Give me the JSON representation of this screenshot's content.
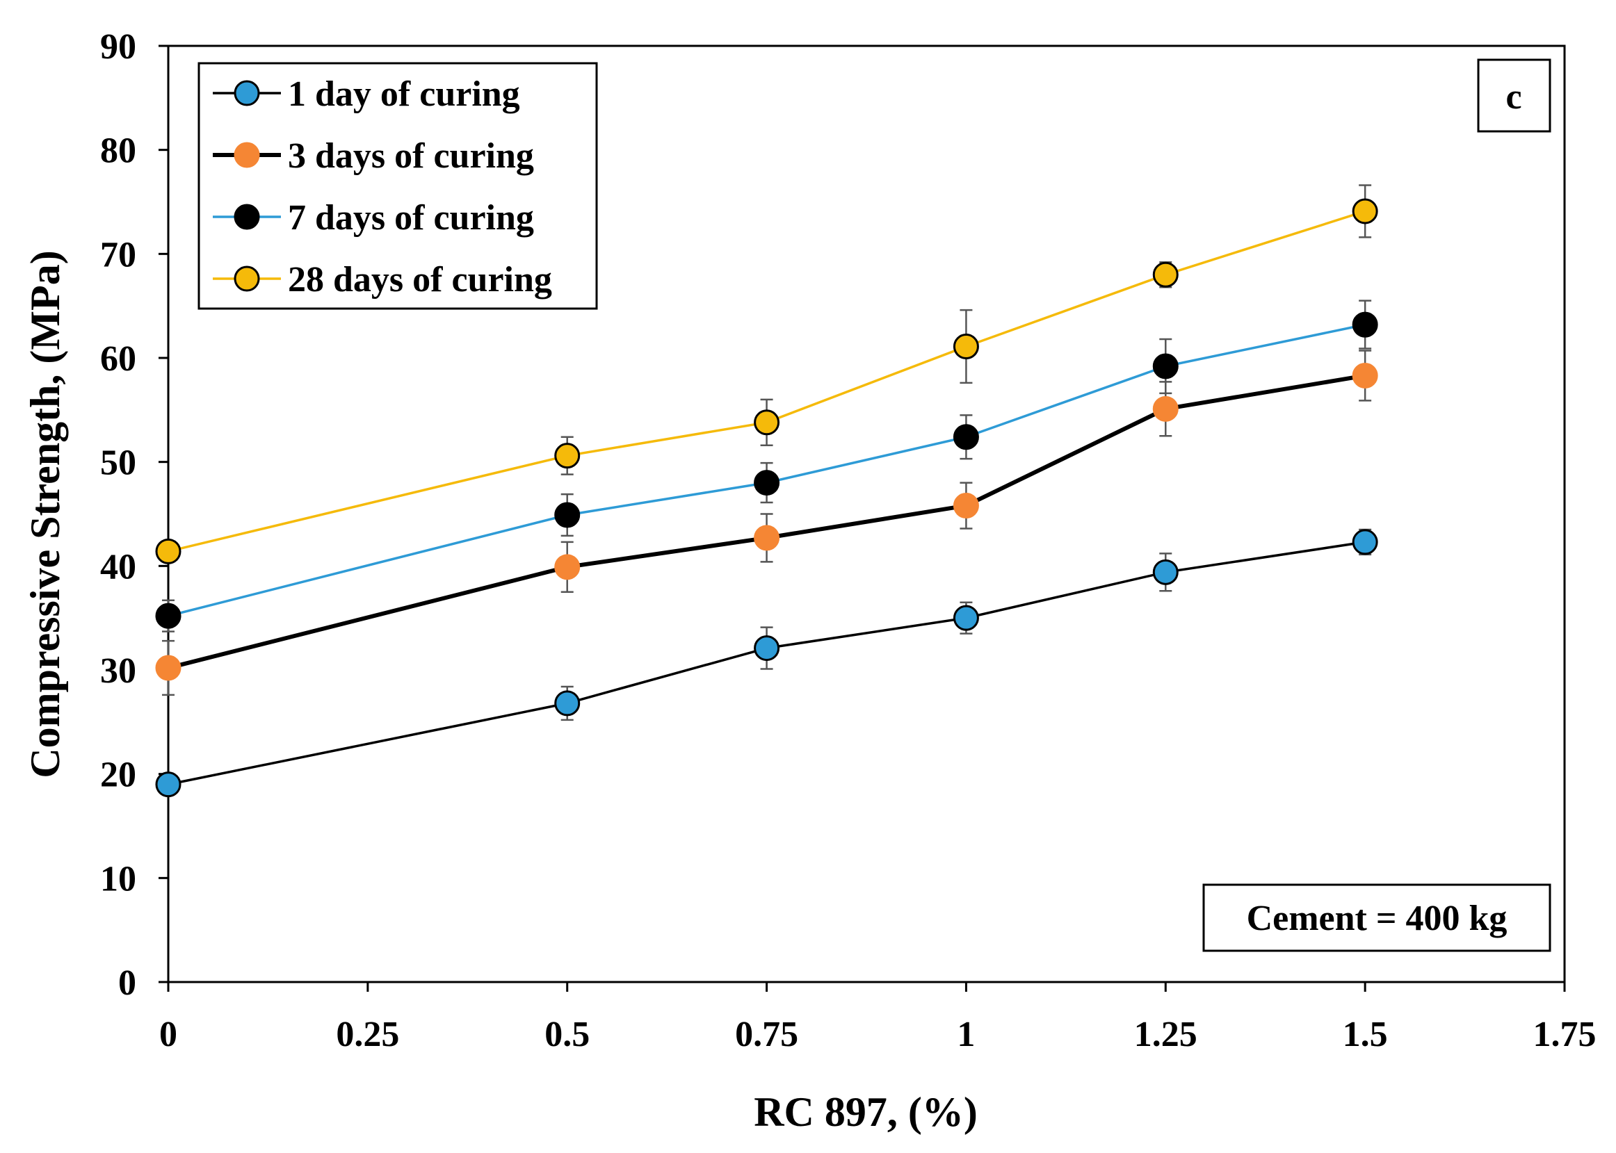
{
  "chart_data": {
    "type": "line",
    "title": "",
    "xlabel": "RC 897, (%)",
    "ylabel": "Compressive  Strength, (MPa)",
    "xlim": [
      0,
      1.75
    ],
    "ylim": [
      0,
      90
    ],
    "x_ticks": [
      "0",
      "0.25",
      "0.5",
      "0.75",
      "1",
      "1.25",
      "1.5",
      "1.75"
    ],
    "x_tick_values": [
      0,
      0.25,
      0.5,
      0.75,
      1,
      1.25,
      1.5,
      1.75
    ],
    "y_ticks": [
      "0",
      "10",
      "20",
      "30",
      "40",
      "50",
      "60",
      "70",
      "80",
      "90"
    ],
    "y_tick_values": [
      0,
      10,
      20,
      30,
      40,
      50,
      60,
      70,
      80,
      90
    ],
    "grid": false,
    "legend_position": "top-left",
    "panel_label": "c",
    "annotation": "Cement = 400 kg",
    "x": [
      0,
      0.5,
      0.75,
      1,
      1.25,
      1.5
    ],
    "series": [
      {
        "name": "1 day of curing",
        "values": [
          19,
          26.8,
          32.1,
          35,
          39.4,
          42.3
        ],
        "errors": [
          0.8,
          1.6,
          2.0,
          1.5,
          1.8,
          1.2
        ],
        "line_color": "#000000",
        "marker_color": "#2E9BD6"
      },
      {
        "name": "3 days of curing",
        "values": [
          30.2,
          39.9,
          42.7,
          45.8,
          55.1,
          58.3
        ],
        "errors": [
          2.6,
          2.4,
          2.3,
          2.2,
          2.6,
          2.4
        ],
        "line_color": "#000000",
        "marker_color": "#F58634"
      },
      {
        "name": "7 days of curing",
        "values": [
          35.2,
          44.9,
          48.0,
          52.4,
          59.2,
          63.2
        ],
        "errors": [
          1.5,
          2.0,
          1.9,
          2.1,
          2.6,
          2.3
        ],
        "line_color": "#2E9BD6",
        "marker_color": "#000000"
      },
      {
        "name": "28 days of curing",
        "values": [
          41.4,
          50.6,
          53.8,
          61.1,
          68.0,
          74.1
        ],
        "errors": [
          0.8,
          1.8,
          2.2,
          3.5,
          1.2,
          2.5
        ],
        "line_color": "#F5BA0A",
        "marker_color": "#F5BA0A"
      }
    ]
  }
}
